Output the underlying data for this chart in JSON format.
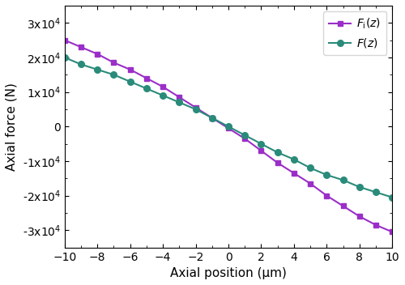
{
  "x_fi": [
    -10,
    -9,
    -8,
    -7,
    -6,
    -5,
    -4,
    -3,
    -2,
    -1,
    0,
    1,
    2,
    3,
    4,
    5,
    6,
    7,
    8,
    9,
    10
  ],
  "y_fi": [
    25000,
    23000,
    21000,
    18500,
    16500,
    14000,
    11500,
    8500,
    5500,
    2500,
    -500,
    -3500,
    -7000,
    -10500,
    -13500,
    -16500,
    -20000,
    -23000,
    -26000,
    -28500,
    -30500
  ],
  "x_fz": [
    -10,
    -9,
    -8,
    -7,
    -6,
    -5,
    -4,
    -3,
    -2,
    -1,
    0,
    1,
    2,
    3,
    4,
    5,
    6,
    7,
    8,
    9,
    10
  ],
  "y_fz": [
    20000,
    18000,
    16500,
    15000,
    13000,
    11000,
    9000,
    7000,
    5000,
    2500,
    0,
    -2500,
    -5000,
    -7500,
    -9500,
    -12000,
    -14000,
    -15500,
    -17500,
    -19000,
    -20500
  ],
  "color_fi": "#9B2EC8",
  "color_fz": "#2A8B7A",
  "xlabel": "Axial position (μm)",
  "ylabel": "Axial force (N)",
  "xlim": [
    -10,
    10
  ],
  "ylim": [
    -35000,
    35000
  ],
  "xticks": [
    -10,
    -8,
    -6,
    -4,
    -2,
    0,
    2,
    4,
    6,
    8,
    10
  ],
  "yticks": [
    -30000,
    -20000,
    -10000,
    0,
    10000,
    20000,
    30000
  ],
  "ytick_labels": [
    "-3x10$^4$",
    "-2x10$^4$",
    "-1x10$^4$",
    "0",
    "1x10$^4$",
    "2x10$^4$",
    "3x10$^4$"
  ],
  "legend_fi": "$F_{\\mathrm{i}}(z)$",
  "legend_fz": "$F(z)$"
}
